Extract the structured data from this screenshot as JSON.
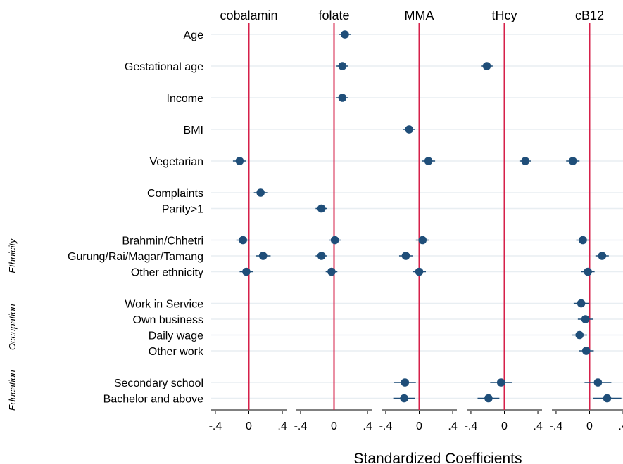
{
  "chart_data": {
    "type": "scatter",
    "subtype": "coefficient-plot",
    "xlabel": "Standardized Coefficients",
    "xlim": [
      -0.45,
      0.45
    ],
    "x_ticks": [
      {
        "value": -0.4,
        "label": "-.4"
      },
      {
        "value": 0,
        "label": "0"
      },
      {
        "value": 0.4,
        "label": ".4"
      }
    ],
    "reference_line": 0,
    "colors": {
      "point": "#1f4e79",
      "reference_line": "#d6204a",
      "gridline": "#e8eef2",
      "axis": "#000000"
    },
    "grid": true,
    "panels": [
      "cobalamin",
      "folate",
      "MMA",
      "tHcy",
      "cB12"
    ],
    "groups": [
      {
        "label": "Ethnicity",
        "rows": [
          7,
          8,
          9
        ]
      },
      {
        "label": "Occupation",
        "rows": [
          10,
          11,
          12,
          13
        ]
      },
      {
        "label": "Education",
        "rows": [
          14,
          15
        ]
      }
    ],
    "rows": [
      {
        "label": "Age",
        "slot": 0
      },
      {
        "label": "Gestational age",
        "slot": 2
      },
      {
        "label": "Income",
        "slot": 4
      },
      {
        "label": "BMI",
        "slot": 6
      },
      {
        "label": "Vegetarian",
        "slot": 8
      },
      {
        "label": "Complaints",
        "slot": 10
      },
      {
        "label": "Parity>1",
        "slot": 11
      },
      {
        "label": "Brahmin/Chhetri",
        "slot": 13
      },
      {
        "label": "Gurung/Rai/Magar/Tamang",
        "slot": 14
      },
      {
        "label": "Other ethnicity",
        "slot": 15
      },
      {
        "label": "Work in Service",
        "slot": 17
      },
      {
        "label": "Own business",
        "slot": 18
      },
      {
        "label": "Daily wage",
        "slot": 19
      },
      {
        "label": "Other work",
        "slot": 20
      },
      {
        "label": "Secondary school",
        "slot": 22
      },
      {
        "label": "Bachelor and above",
        "slot": 23
      }
    ],
    "series": [
      {
        "name": "cobalamin",
        "points": [
          {
            "row": 4,
            "value": -0.11,
            "ci": [
              -0.19,
              -0.03
            ]
          },
          {
            "row": 5,
            "value": 0.14,
            "ci": [
              0.06,
              0.22
            ]
          },
          {
            "row": 7,
            "value": -0.07,
            "ci": [
              -0.15,
              0.01
            ]
          },
          {
            "row": 8,
            "value": 0.17,
            "ci": [
              0.08,
              0.26
            ]
          },
          {
            "row": 9,
            "value": -0.03,
            "ci": [
              -0.11,
              0.05
            ]
          }
        ]
      },
      {
        "name": "folate",
        "points": [
          {
            "row": 0,
            "value": 0.13,
            "ci": [
              0.06,
              0.2
            ]
          },
          {
            "row": 1,
            "value": 0.1,
            "ci": [
              0.03,
              0.17
            ]
          },
          {
            "row": 2,
            "value": 0.1,
            "ci": [
              0.03,
              0.17
            ]
          },
          {
            "row": 6,
            "value": -0.15,
            "ci": [
              -0.22,
              -0.08
            ]
          },
          {
            "row": 7,
            "value": 0.01,
            "ci": [
              -0.06,
              0.08
            ]
          },
          {
            "row": 8,
            "value": -0.15,
            "ci": [
              -0.22,
              -0.08
            ]
          },
          {
            "row": 9,
            "value": -0.03,
            "ci": [
              -0.1,
              0.04
            ]
          }
        ]
      },
      {
        "name": "MMA",
        "points": [
          {
            "row": 3,
            "value": -0.12,
            "ci": [
              -0.19,
              -0.05
            ]
          },
          {
            "row": 4,
            "value": 0.11,
            "ci": [
              0.03,
              0.19
            ]
          },
          {
            "row": 7,
            "value": 0.04,
            "ci": [
              -0.04,
              0.12
            ]
          },
          {
            "row": 8,
            "value": -0.16,
            "ci": [
              -0.24,
              -0.08
            ]
          },
          {
            "row": 9,
            "value": 0.0,
            "ci": [
              -0.08,
              0.08
            ]
          },
          {
            "row": 14,
            "value": -0.17,
            "ci": [
              -0.3,
              -0.04
            ]
          },
          {
            "row": 15,
            "value": -0.18,
            "ci": [
              -0.31,
              -0.05
            ]
          }
        ]
      },
      {
        "name": "tHcy",
        "points": [
          {
            "row": 1,
            "value": -0.21,
            "ci": [
              -0.28,
              -0.14
            ]
          },
          {
            "row": 4,
            "value": 0.25,
            "ci": [
              0.18,
              0.32
            ]
          },
          {
            "row": 14,
            "value": -0.04,
            "ci": [
              -0.17,
              0.09
            ]
          },
          {
            "row": 15,
            "value": -0.19,
            "ci": [
              -0.32,
              -0.06
            ]
          }
        ]
      },
      {
        "name": "cB12",
        "points": [
          {
            "row": 4,
            "value": -0.2,
            "ci": [
              -0.28,
              -0.12
            ]
          },
          {
            "row": 7,
            "value": -0.08,
            "ci": [
              -0.16,
              0.0
            ]
          },
          {
            "row": 8,
            "value": 0.15,
            "ci": [
              0.07,
              0.23
            ]
          },
          {
            "row": 9,
            "value": -0.02,
            "ci": [
              -0.1,
              0.06
            ]
          },
          {
            "row": 10,
            "value": -0.1,
            "ci": [
              -0.19,
              -0.01
            ]
          },
          {
            "row": 11,
            "value": -0.05,
            "ci": [
              -0.14,
              0.04
            ]
          },
          {
            "row": 12,
            "value": -0.12,
            "ci": [
              -0.21,
              -0.03
            ]
          },
          {
            "row": 13,
            "value": -0.04,
            "ci": [
              -0.13,
              0.05
            ]
          },
          {
            "row": 14,
            "value": 0.1,
            "ci": [
              -0.06,
              0.26
            ]
          },
          {
            "row": 15,
            "value": 0.21,
            "ci": [
              0.04,
              0.38
            ]
          }
        ]
      }
    ]
  }
}
